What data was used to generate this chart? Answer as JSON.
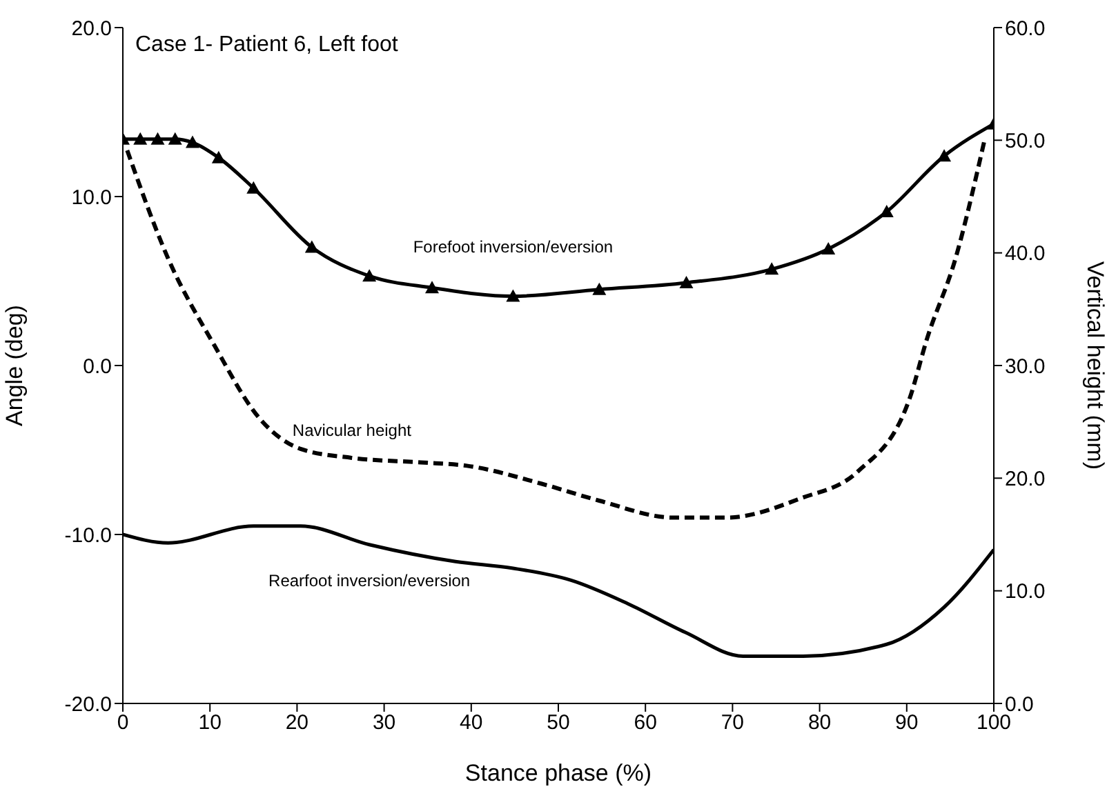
{
  "chart_data": {
    "type": "line",
    "title": "Case 1- Patient 6, Left foot",
    "xlabel": "Stance phase (%)",
    "ylabel": "Angle (deg)",
    "y2label": "Vertical height (mm)",
    "xlim": [
      0,
      100
    ],
    "xticks": [
      0,
      10,
      20,
      30,
      40,
      50,
      60,
      70,
      80,
      90,
      100
    ],
    "ylim": [
      -20,
      20
    ],
    "yticks": [
      {
        "value": -20,
        "label": "-20.0"
      },
      {
        "value": -10,
        "label": "-10.0"
      },
      {
        "value": 0,
        "label": "0.0"
      },
      {
        "value": 10,
        "label": "10.0"
      },
      {
        "value": 20,
        "label": "20.0"
      }
    ],
    "y2lim": [
      0,
      60
    ],
    "y2ticks": [
      {
        "value": 0,
        "label": "0.0"
      },
      {
        "value": 10,
        "label": "10.0"
      },
      {
        "value": 20,
        "label": "20.0"
      },
      {
        "value": 30,
        "label": "30.0"
      },
      {
        "value": 40,
        "label": "40.0"
      },
      {
        "value": 50,
        "label": "50.0"
      },
      {
        "value": 60,
        "label": "60.0"
      }
    ],
    "series": [
      {
        "name": "Forefoot inversion/eversion",
        "color": "#000000",
        "marker": "triangle",
        "line_style": "solid",
        "x": [
          0,
          2,
          4,
          6,
          8,
          11,
          15,
          21.7,
          28.3,
          35.5,
          44.8,
          54.7,
          64.7,
          74.5,
          81,
          87.7,
          94.3,
          100
        ],
        "values": [
          13.4,
          13.4,
          13.4,
          13.4,
          13.2,
          12.3,
          10.5,
          7.0,
          5.3,
          4.6,
          4.1,
          4.5,
          4.9,
          5.7,
          6.9,
          9.1,
          12.4,
          14.3
        ]
      },
      {
        "name": "Navicular height",
        "color": "#000000",
        "marker": "none",
        "line_style": "dashed",
        "axis": "y2",
        "x": [
          0.5,
          5.2,
          10.5,
          15.7,
          20.4,
          26.3,
          34.2,
          39.5,
          48.1,
          54.7,
          63.2,
          69.3,
          77.8,
          84.4,
          90.3,
          92.3,
          95.6,
          98.9
        ],
        "values": [
          49.1,
          39.5,
          31.8,
          25.3,
          22.6,
          21.8,
          21.4,
          21.1,
          19.5,
          18.0,
          16.5,
          16.5,
          18.2,
          20.6,
          27.0,
          32.3,
          39.5,
          49.9
        ]
      },
      {
        "name": "Rearfoot inversion/eversion",
        "color": "#000000",
        "marker": "none",
        "line_style": "solid",
        "x": [
          0,
          5.2,
          15,
          20.4,
          28.3,
          38.2,
          44.8,
          51.4,
          58,
          64.6,
          71.2,
          78.1,
          87.7,
          94.3,
          100
        ],
        "values": [
          -10.0,
          -10.5,
          -9.5,
          -9.5,
          -10.6,
          -11.6,
          -12.0,
          -12.7,
          -14.1,
          -15.8,
          -17.2,
          -17.2,
          -16.5,
          -14.3,
          -10.9
        ]
      }
    ]
  }
}
